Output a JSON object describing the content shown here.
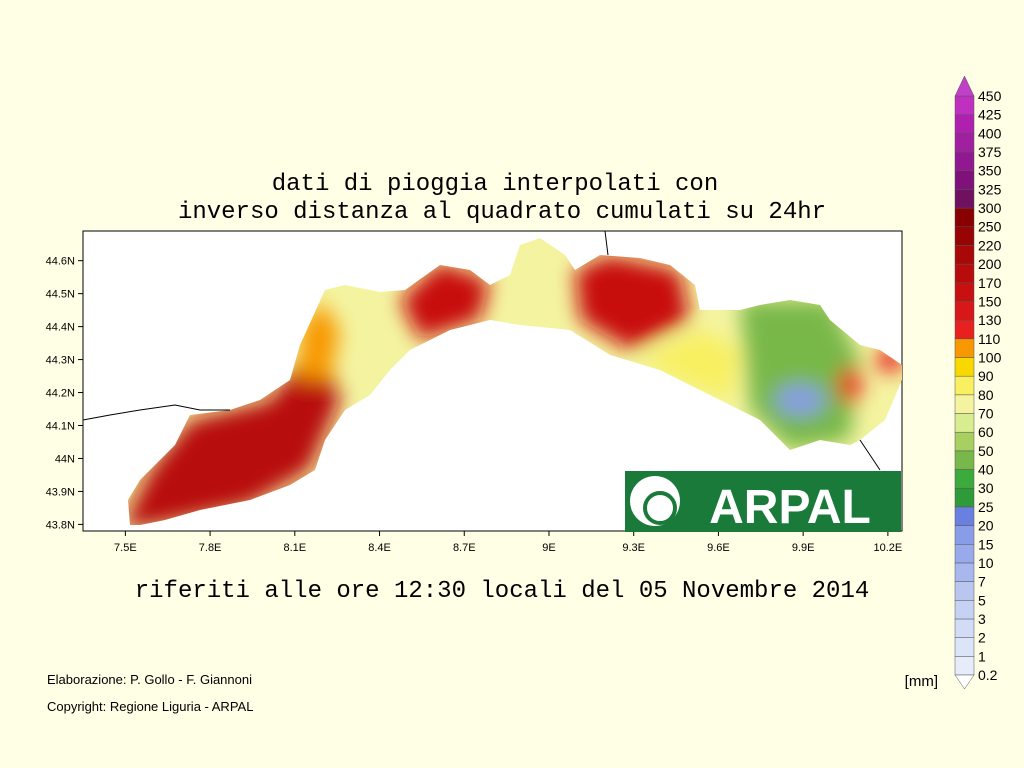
{
  "title": [
    "dati di pioggia interpolati con",
    "inverso distanza al quadrato cumulati su 24hr"
  ],
  "subtitle": "riferiti alle ore 12:30 locali del 05 Novembre 2014",
  "credits": [
    "Elaborazione: P. Gollo - F. Giannoni",
    "Copyright: Regione Liguria - ARPAL"
  ],
  "unit": "[mm]",
  "logo": "ARPAL",
  "map": {
    "xlim": [
      7.35,
      10.25
    ],
    "ylim": [
      43.78,
      44.69
    ],
    "xticks": [
      {
        "value": 7.5,
        "label": "7.5E"
      },
      {
        "value": 7.8,
        "label": "7.8E"
      },
      {
        "value": 8.1,
        "label": "8.1E"
      },
      {
        "value": 8.4,
        "label": "8.4E"
      },
      {
        "value": 8.7,
        "label": "8.7E"
      },
      {
        "value": 9,
        "label": "9E"
      },
      {
        "value": 9.3,
        "label": "9.3E"
      },
      {
        "value": 9.6,
        "label": "9.6E"
      },
      {
        "value": 9.9,
        "label": "9.9E"
      },
      {
        "value": 10.2,
        "label": "10.2E"
      }
    ],
    "yticks": [
      {
        "value": 43.8,
        "label": "43.8N"
      },
      {
        "value": 43.9,
        "label": "43.9N"
      },
      {
        "value": 44,
        "label": "44N"
      },
      {
        "value": 44.1,
        "label": "44.1N"
      },
      {
        "value": 44.2,
        "label": "44.2N"
      },
      {
        "value": 44.3,
        "label": "44.3N"
      },
      {
        "value": 44.4,
        "label": "44.4N"
      },
      {
        "value": 44.5,
        "label": "44.5N"
      },
      {
        "value": 44.6,
        "label": "44.6N"
      }
    ]
  },
  "colorbar": {
    "levels": [
      0.2,
      1,
      2,
      3,
      5,
      7,
      10,
      15,
      20,
      25,
      30,
      40,
      50,
      60,
      70,
      80,
      90,
      100,
      110,
      130,
      150,
      170,
      200,
      220,
      250,
      300,
      325,
      350,
      375,
      400,
      425,
      450
    ],
    "colors": [
      "#e6ecfa",
      "#dce4f8",
      "#d2dcf6",
      "#c6d2f4",
      "#b8c6f0",
      "#a8b8ee",
      "#98aaec",
      "#889ce8",
      "#6a80e0",
      "#2e9a3a",
      "#3caa3c",
      "#78b84a",
      "#a8d060",
      "#d8ec90",
      "#f4f4a0",
      "#f8f060",
      "#f8d800",
      "#f89800",
      "#e82020",
      "#d81818",
      "#c81010",
      "#b80c0c",
      "#a80808",
      "#980404",
      "#880000",
      "#701060",
      "#80107a",
      "#901890",
      "#a020a0",
      "#b020b0",
      "#c030c0"
    ],
    "over_color": "#c040c8"
  }
}
